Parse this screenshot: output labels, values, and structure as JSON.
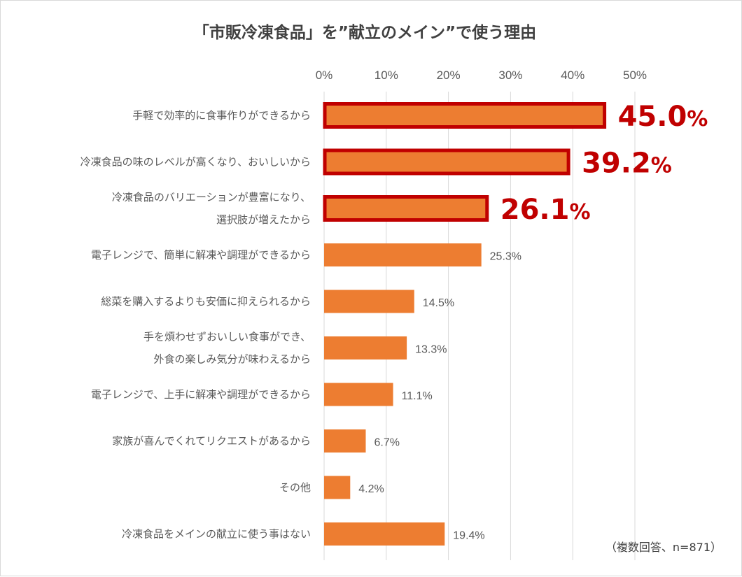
{
  "colors": {
    "bar": "#ED7D31",
    "highlight_border": "#C00000",
    "highlight_text": "#C00000",
    "gridline": "#D9D9D9",
    "text": "#595959"
  },
  "chart_data": {
    "type": "bar",
    "orientation": "horizontal",
    "title": "「市販冷凍食品」を”献立のメイン”で使う理由",
    "x_ticks": [
      "0%",
      "10%",
      "20%",
      "30%",
      "40%",
      "50%"
    ],
    "xlim": [
      0,
      50
    ],
    "grid": true,
    "categories": [
      [
        "手軽で効率的に食事作りができるから"
      ],
      [
        "冷凍食品の味のレベルが高くなり、おいしいから"
      ],
      [
        "冷凍食品のバリエーションが豊富になり、",
        "選択肢が増えたから"
      ],
      [
        "電子レンジで、簡単に解凍や調理ができるから"
      ],
      [
        "総菜を購入するよりも安価に抑えられるから"
      ],
      [
        "手を煩わせずおいしい食事ができ、",
        "外食の楽しみ気分が味わえるから"
      ],
      [
        "電子レンジで、上手に解凍や調理ができるから"
      ],
      [
        "家族が喜んでくれてリクエストがあるから"
      ],
      [
        "その他"
      ],
      [
        "冷凍食品をメインの献立に使う事はない"
      ]
    ],
    "values": [
      45.0,
      39.2,
      26.1,
      25.3,
      14.5,
      13.3,
      11.1,
      6.7,
      4.2,
      19.4
    ],
    "value_labels": [
      "45.0",
      "39.2",
      "26.1",
      "25.3%",
      "14.5%",
      "13.3%",
      "11.1%",
      "6.7%",
      "4.2%",
      "19.4%"
    ],
    "highlight_unit": "%",
    "highlighted": [
      0,
      1,
      2
    ],
    "note": "（複数回答、n=871）"
  }
}
